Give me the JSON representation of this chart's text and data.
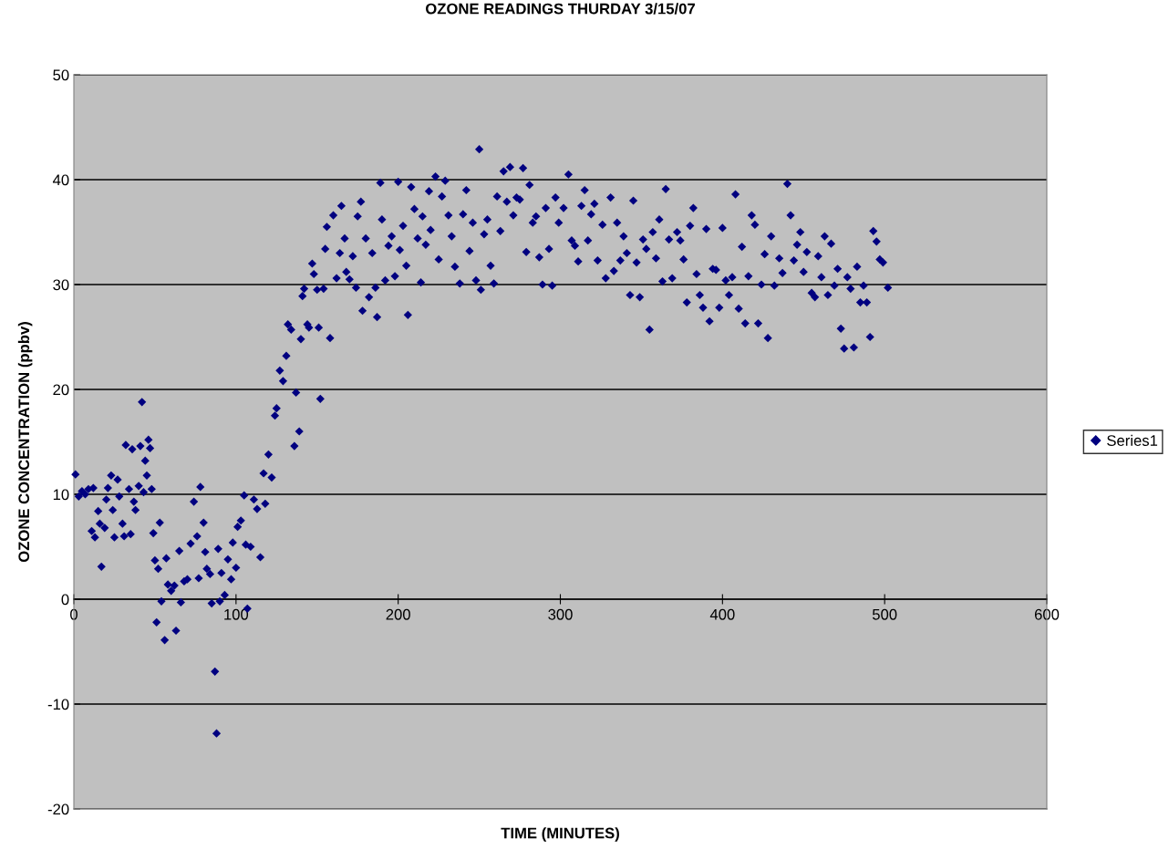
{
  "chart_data": {
    "type": "scatter",
    "title": "OZONE READINGS THURDAY 3/15/07",
    "xlabel": "TIME (MINUTES)",
    "ylabel": "OZONE CONCENTRATION (ppbv)",
    "xlim": [
      0,
      600
    ],
    "xticks": [
      0,
      100,
      200,
      300,
      400,
      500,
      600
    ],
    "ylim": [
      -20,
      50
    ],
    "yticks": [
      -20,
      -10,
      0,
      10,
      20,
      30,
      40,
      50
    ],
    "grid": "y",
    "legend": "right",
    "marker": "diamond",
    "series": [
      {
        "name": "Series1",
        "color": "#000080",
        "x": [
          1,
          3,
          5,
          7,
          9,
          11,
          12,
          13,
          15,
          16,
          17,
          19,
          20,
          21,
          23,
          24,
          25,
          27,
          28,
          30,
          31,
          32,
          34,
          35,
          36,
          37,
          38,
          40,
          41,
          42,
          43,
          44,
          45,
          46,
          47,
          48,
          49,
          50,
          51,
          52,
          53,
          54,
          56,
          57,
          58,
          60,
          62,
          63,
          65,
          66,
          68,
          70,
          72,
          74,
          76,
          77,
          78,
          80,
          81,
          82,
          84,
          85,
          87,
          88,
          89,
          90,
          91,
          93,
          95,
          97,
          98,
          100,
          101,
          103,
          105,
          106,
          107,
          109,
          111,
          113,
          115,
          117,
          118,
          120,
          122,
          124,
          125,
          127,
          129,
          131,
          132,
          134,
          136,
          137,
          139,
          140,
          141,
          142,
          144,
          145,
          147,
          148,
          150,
          151,
          152,
          154,
          155,
          156,
          158,
          160,
          162,
          164,
          165,
          167,
          168,
          170,
          172,
          174,
          175,
          177,
          178,
          180,
          182,
          184,
          186,
          187,
          189,
          190,
          192,
          194,
          196,
          198,
          200,
          201,
          203,
          205,
          206,
          208,
          210,
          212,
          214,
          215,
          217,
          219,
          220,
          223,
          225,
          227,
          229,
          231,
          233,
          235,
          238,
          240,
          242,
          244,
          246,
          248,
          250,
          251,
          253,
          255,
          257,
          259,
          261,
          263,
          265,
          267,
          269,
          271,
          273,
          275,
          277,
          279,
          281,
          283,
          285,
          287,
          289,
          291,
          293,
          295,
          297,
          299,
          302,
          305,
          307,
          309,
          311,
          313,
          315,
          317,
          319,
          321,
          323,
          326,
          328,
          331,
          333,
          335,
          337,
          339,
          341,
          343,
          345,
          347,
          349,
          351,
          353,
          355,
          357,
          359,
          361,
          363,
          365,
          367,
          369,
          372,
          374,
          376,
          378,
          380,
          382,
          384,
          386,
          388,
          390,
          392,
          394,
          396,
          398,
          400,
          402,
          404,
          406,
          408,
          410,
          412,
          414,
          416,
          418,
          420,
          422,
          424,
          426,
          428,
          430,
          432,
          435,
          437,
          440,
          442,
          444,
          446,
          448,
          450,
          452,
          455,
          457,
          459,
          461,
          463,
          465,
          467,
          469,
          471,
          473,
          475,
          477,
          479,
          481,
          483,
          485,
          487,
          489,
          491,
          493,
          495,
          497,
          499,
          502
        ],
        "values": [
          11.9,
          9.8,
          10.3,
          10,
          10.5,
          6.5,
          10.6,
          5.9,
          8.4,
          7.2,
          3.1,
          6.8,
          9.5,
          10.6,
          11.8,
          8.5,
          5.9,
          11.4,
          9.8,
          7.2,
          6,
          14.7,
          10.5,
          6.2,
          14.3,
          9.3,
          8.5,
          10.8,
          14.6,
          18.8,
          10.2,
          13.2,
          11.8,
          15.2,
          14.4,
          10.5,
          6.3,
          3.7,
          -2.2,
          2.9,
          7.3,
          -0.2,
          -3.9,
          3.9,
          1.4,
          0.8,
          1.3,
          -3,
          4.6,
          -0.3,
          1.7,
          1.9,
          5.3,
          9.3,
          6,
          2,
          10.7,
          7.3,
          4.5,
          2.9,
          2.4,
          -0.4,
          -6.9,
          -12.8,
          4.8,
          -0.2,
          2.5,
          0.4,
          3.8,
          1.9,
          5.4,
          3,
          6.9,
          7.5,
          9.9,
          5.2,
          -0.9,
          5,
          9.5,
          8.6,
          4,
          12,
          9.1,
          13.8,
          11.6,
          17.5,
          18.2,
          21.8,
          20.8,
          23.2,
          26.2,
          25.7,
          14.6,
          19.7,
          16,
          24.8,
          28.9,
          29.6,
          26.2,
          25.9,
          32,
          31,
          29.5,
          25.9,
          19.1,
          29.6,
          33.4,
          35.5,
          24.9,
          36.6,
          30.6,
          33,
          37.5,
          34.4,
          31.2,
          30.5,
          32.7,
          29.7,
          36.5,
          37.9,
          27.5,
          34.4,
          28.8,
          33,
          29.7,
          26.9,
          39.7,
          36.2,
          30.4,
          33.7,
          34.6,
          30.8,
          39.8,
          33.3,
          35.6,
          31.8,
          27.1,
          39.3,
          37.2,
          34.4,
          30.2,
          36.5,
          33.8,
          38.9,
          35.2,
          40.3,
          32.4,
          38.4,
          39.9,
          36.6,
          34.6,
          31.7,
          30.1,
          36.7,
          39,
          33.2,
          35.9,
          30.4,
          42.9,
          29.5,
          34.8,
          36.2,
          31.8,
          30.1,
          38.4,
          35.1,
          40.8,
          37.9,
          41.2,
          36.6,
          38.3,
          38.1,
          41.1,
          33.1,
          39.5,
          35.9,
          36.5,
          32.6,
          30,
          37.3,
          33.4,
          29.9,
          38.3,
          35.9,
          37.3,
          40.5,
          34.2,
          33.7,
          32.2,
          37.5,
          39,
          34.2,
          36.7,
          37.7,
          32.3,
          35.7,
          30.6,
          38.3,
          31.3,
          35.9,
          32.3,
          34.6,
          33,
          29,
          38,
          32.1,
          28.8,
          34.3,
          33.4,
          25.7,
          35,
          32.5,
          36.2,
          30.3,
          39.1,
          34.3,
          30.6,
          35,
          34.2,
          32.4,
          28.3,
          35.6,
          37.3,
          31,
          29,
          27.8,
          35.3,
          26.5,
          31.5,
          31.4,
          27.8,
          35.4,
          30.4,
          29,
          30.7,
          38.6,
          27.7,
          33.6,
          26.3,
          30.8,
          36.6,
          35.7,
          26.3,
          30,
          32.9,
          24.9,
          34.6,
          29.9,
          32.5,
          31.1,
          39.6,
          36.6,
          32.3,
          33.8,
          35,
          31.2,
          33.1,
          29.2,
          28.8,
          32.7,
          30.7,
          34.6,
          29,
          33.9,
          29.9,
          31.5,
          25.8,
          23.9,
          30.7,
          29.6,
          24,
          31.7,
          28.3,
          29.9,
          28.3,
          25,
          35.1,
          34.1,
          32.4,
          32.1,
          29.7
        ]
      }
    ]
  }
}
